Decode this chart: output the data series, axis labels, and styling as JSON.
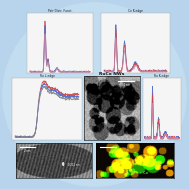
{
  "bg_color": "#b8d4ec",
  "circle_color": "#c2dcf0",
  "colors": {
    "red": "#cc4444",
    "blue": "#4466cc",
    "pink": "#cc88aa",
    "gray": "#888888",
    "darkblue": "#2244aa"
  },
  "panel_facecolor": "#f5f5f5",
  "figsize": [
    1.89,
    1.89
  ],
  "dpi": 100
}
